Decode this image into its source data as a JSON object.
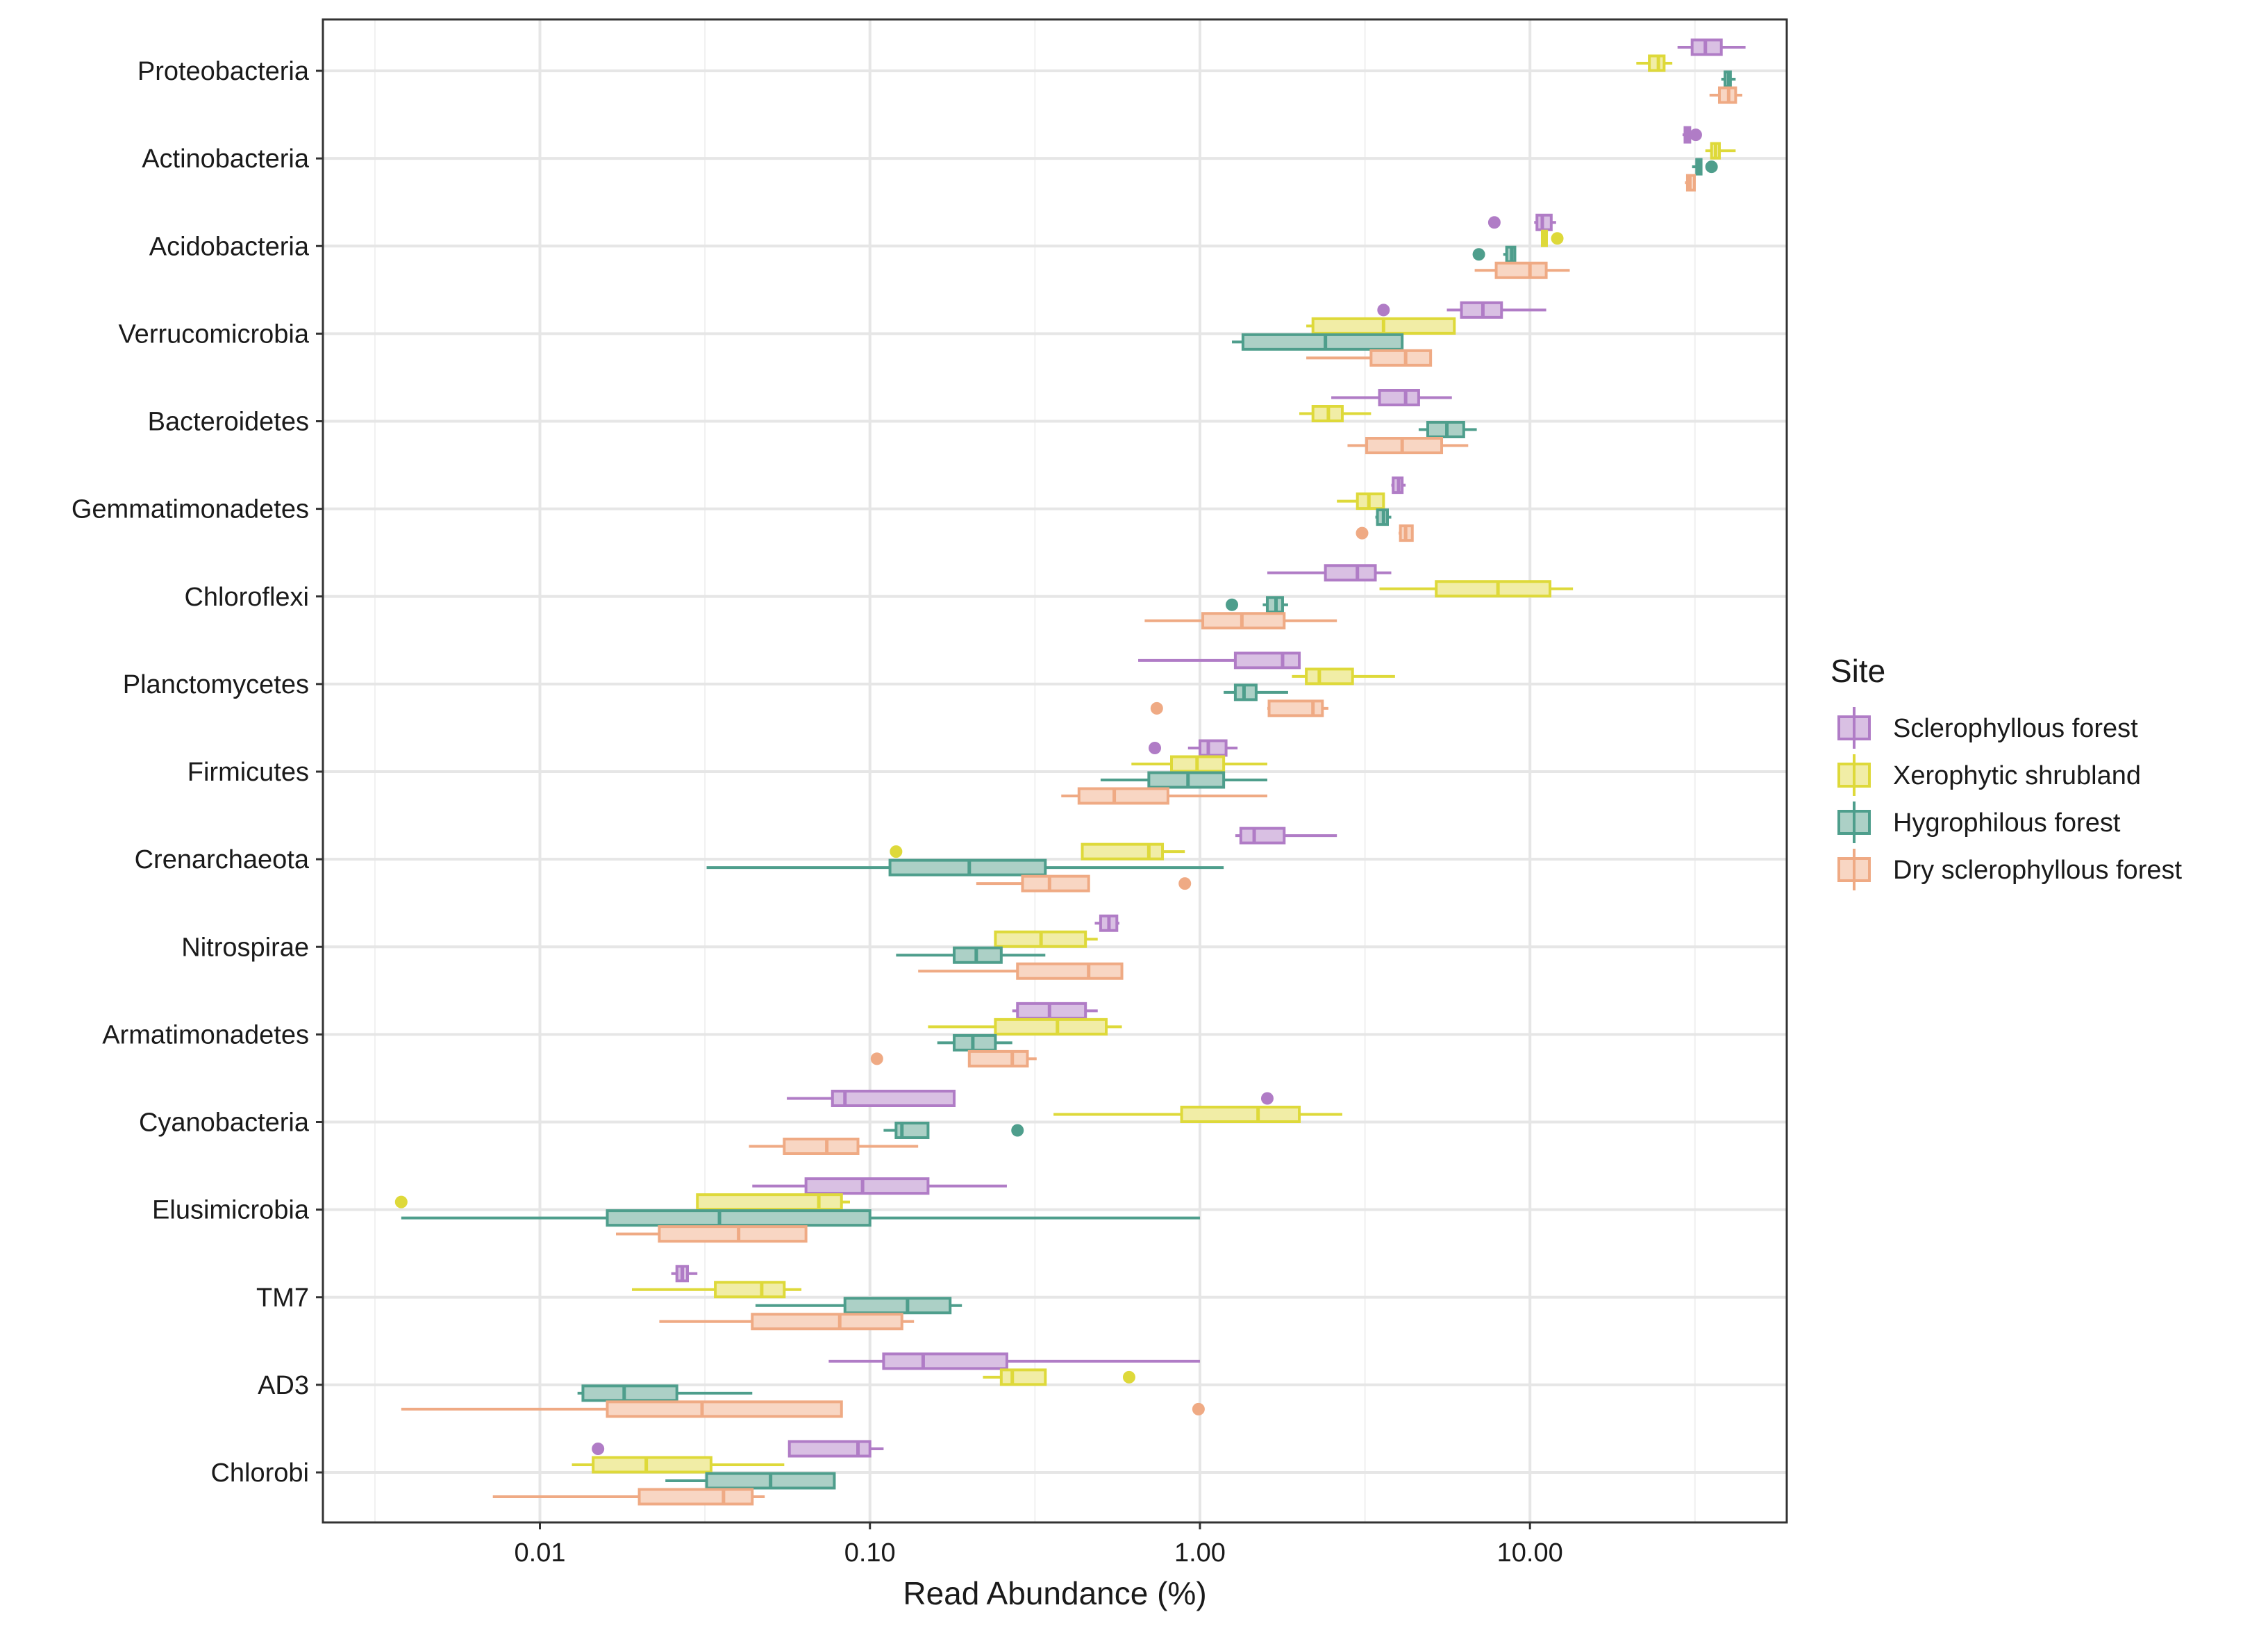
{
  "chart_data": {
    "type": "boxplot",
    "xlabel": "Read Abundance (%)",
    "xscale": "log10",
    "xlim": [
      0.0022,
      60
    ],
    "xticks": [
      {
        "value": 0.01,
        "label": "0.01"
      },
      {
        "value": 0.1,
        "label": "0.10"
      },
      {
        "value": 1,
        "label": "1.00"
      },
      {
        "value": 10,
        "label": "10.00"
      }
    ],
    "grid": true,
    "legend": {
      "title": "Site",
      "position": "right",
      "entries": [
        {
          "name": "Sclerophyllous forest",
          "stroke": "#B07CC6",
          "fill": "#D9C0E3"
        },
        {
          "name": "Xerophytic shrubland",
          "stroke": "#DED93A",
          "fill": "#F1EDA6"
        },
        {
          "name": "Hygrophilous forest",
          "stroke": "#4E9E8C",
          "fill": "#ACD0C6"
        },
        {
          "name": "Dry sclerophyllous forest",
          "stroke": "#EFAA84",
          "fill": "#F8D6C3"
        }
      ]
    },
    "categories": [
      "Proteobacteria",
      "Actinobacteria",
      "Acidobacteria",
      "Verrucomicrobia",
      "Bacteroidetes",
      "Gemmatimonadetes",
      "Chloroflexi",
      "Planctomycetes",
      "Firmicutes",
      "Crenarchaeota",
      "Nitrospirae",
      "Armatimonadetes",
      "Cyanobacteria",
      "Elusimicrobia",
      "TM7",
      "AD3",
      "Chlorobi"
    ],
    "series": [
      {
        "name": "Sclerophyllous forest",
        "boxes": [
          [
            28,
            31,
            34,
            38,
            45
          ],
          [
            29,
            29.5,
            30,
            30.5,
            31
          ],
          [
            10.3,
            10.5,
            10.9,
            11.6,
            12
          ],
          [
            5.6,
            6.2,
            7.2,
            8.2,
            11.2
          ],
          [
            2.5,
            3.5,
            4.2,
            4.6,
            5.8
          ],
          [
            3.8,
            3.85,
            4.0,
            4.1,
            4.2
          ],
          [
            1.6,
            2.4,
            3.0,
            3.4,
            3.8
          ],
          [
            0.65,
            1.28,
            1.78,
            2.0,
            2.0
          ],
          [
            0.92,
            1.0,
            1.06,
            1.2,
            1.3
          ],
          [
            1.28,
            1.33,
            1.46,
            1.8,
            2.6
          ],
          [
            0.48,
            0.5,
            0.53,
            0.56,
            0.57
          ],
          [
            0.27,
            0.28,
            0.35,
            0.45,
            0.49
          ],
          [
            0.056,
            0.077,
            0.084,
            0.18,
            0.18
          ],
          [
            0.044,
            0.064,
            0.095,
            0.15,
            0.26
          ],
          [
            0.025,
            0.026,
            0.027,
            0.028,
            0.03
          ],
          [
            0.075,
            0.11,
            0.145,
            0.26,
            1.0
          ],
          [
            0.057,
            0.057,
            0.092,
            0.1,
            0.11
          ]
        ],
        "outliers": [
          [],
          [
            31.8
          ],
          [
            7.8
          ],
          [
            3.6
          ],
          [],
          [],
          [],
          [],
          [
            0.73
          ],
          [],
          [],
          [],
          [
            1.6
          ],
          [],
          [],
          [],
          [
            0.015
          ]
        ]
      },
      {
        "name": "Xerophytic shrubland",
        "boxes": [
          [
            21,
            23,
            24.5,
            25.5,
            27
          ],
          [
            34,
            35.5,
            36.5,
            37.5,
            42
          ],
          [
            10.8,
            10.9,
            11.0,
            11.2,
            11.3
          ],
          [
            2.1,
            2.2,
            3.6,
            5.9,
            5.9
          ],
          [
            2.0,
            2.2,
            2.45,
            2.7,
            3.3
          ],
          [
            2.6,
            3.0,
            3.25,
            3.6,
            3.6
          ],
          [
            3.5,
            5.2,
            8.0,
            11.5,
            13.5
          ],
          [
            1.9,
            2.1,
            2.3,
            2.9,
            3.9
          ],
          [
            0.62,
            0.82,
            0.98,
            1.18,
            1.6
          ],
          [
            0.44,
            0.44,
            0.7,
            0.77,
            0.9
          ],
          [
            0.24,
            0.24,
            0.33,
            0.45,
            0.49
          ],
          [
            0.15,
            0.24,
            0.37,
            0.52,
            0.58
          ],
          [
            0.36,
            0.88,
            1.5,
            2.0,
            2.7
          ],
          [
            0.03,
            0.03,
            0.07,
            0.082,
            0.087
          ],
          [
            0.019,
            0.034,
            0.047,
            0.055,
            0.062
          ],
          [
            0.22,
            0.25,
            0.27,
            0.34,
            0.34
          ],
          [
            0.0125,
            0.0145,
            0.021,
            0.033,
            0.055
          ]
        ],
        "outliers": [
          [],
          [],
          [
            12.1
          ],
          [],
          [],
          [],
          [],
          [],
          [],
          [
            0.12
          ],
          [],
          [],
          [],
          [
            0.0038
          ],
          [],
          [
            0.61
          ],
          []
        ]
      },
      {
        "name": "Hygrophilous forest",
        "boxes": [
          [
            38,
            39,
            40,
            40.5,
            42
          ],
          [
            31,
            32,
            32.5,
            33,
            33
          ],
          [
            8.3,
            8.5,
            8.8,
            9.0,
            9.0
          ],
          [
            1.25,
            1.35,
            2.4,
            4.1,
            4.1
          ],
          [
            4.6,
            4.9,
            5.6,
            6.3,
            6.9
          ],
          [
            3.4,
            3.45,
            3.6,
            3.7,
            3.8
          ],
          [
            1.55,
            1.6,
            1.7,
            1.78,
            1.85
          ],
          [
            1.18,
            1.28,
            1.36,
            1.48,
            1.85
          ],
          [
            0.5,
            0.7,
            0.92,
            1.18,
            1.6
          ],
          [
            0.032,
            0.115,
            0.2,
            0.34,
            1.18
          ],
          [
            0.12,
            0.18,
            0.21,
            0.25,
            0.34
          ],
          [
            0.16,
            0.18,
            0.205,
            0.24,
            0.27
          ],
          [
            0.11,
            0.12,
            0.125,
            0.15,
            0.15
          ],
          [
            0.0038,
            0.016,
            0.035,
            0.1,
            1.0
          ],
          [
            0.045,
            0.084,
            0.13,
            0.175,
            0.19
          ],
          [
            0.013,
            0.0135,
            0.018,
            0.026,
            0.044
          ],
          [
            0.024,
            0.032,
            0.05,
            0.078,
            0.078
          ]
        ],
        "outliers": [
          [],
          [
            35.5
          ],
          [
            7.0
          ],
          [],
          [],
          [],
          [
            1.25
          ],
          [],
          [],
          [],
          [],
          [],
          [
            0.28
          ],
          [],
          [],
          [],
          []
        ]
      },
      {
        "name": "Dry sclerophyllous forest",
        "boxes": [
          [
            35,
            37.5,
            40,
            42,
            44
          ],
          [
            29.5,
            30.0,
            30.5,
            31.5,
            31.5
          ],
          [
            6.8,
            7.9,
            10.0,
            11.2,
            13.2
          ],
          [
            2.1,
            3.3,
            4.2,
            5.0,
            5.0
          ],
          [
            2.8,
            3.2,
            4.1,
            5.4,
            6.5
          ],
          [
            4.0,
            4.05,
            4.2,
            4.4,
            4.4
          ],
          [
            0.68,
            1.02,
            1.34,
            1.8,
            2.6
          ],
          [
            1.6,
            1.62,
            2.2,
            2.35,
            2.45
          ],
          [
            0.38,
            0.43,
            0.55,
            0.8,
            1.6
          ],
          [
            0.21,
            0.29,
            0.35,
            0.46,
            0.46
          ],
          [
            0.14,
            0.28,
            0.46,
            0.58,
            0.58
          ],
          [
            0.2,
            0.2,
            0.27,
            0.3,
            0.32
          ],
          [
            0.043,
            0.055,
            0.074,
            0.092,
            0.14
          ],
          [
            0.017,
            0.023,
            0.04,
            0.064,
            0.064
          ],
          [
            0.023,
            0.044,
            0.081,
            0.125,
            0.136
          ],
          [
            0.0038,
            0.016,
            0.031,
            0.082,
            0.082
          ],
          [
            0.0072,
            0.02,
            0.036,
            0.044,
            0.048
          ]
        ],
        "outliers": [
          [],
          [],
          [],
          [],
          [],
          [
            3.1
          ],
          [],
          [
            0.74
          ],
          [],
          [
            0.9
          ],
          [],
          [
            0.105
          ],
          [],
          [],
          [],
          [
            0.99
          ],
          []
        ]
      }
    ]
  }
}
